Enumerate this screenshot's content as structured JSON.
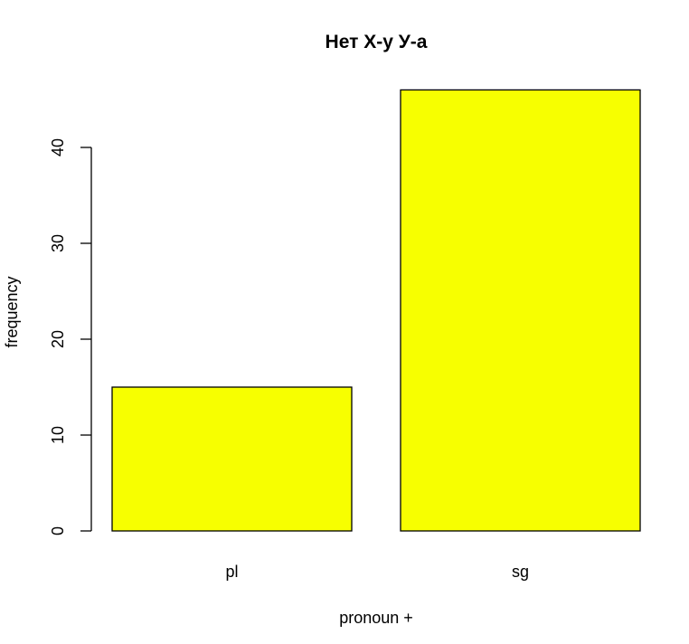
{
  "chart_data": {
    "type": "bar",
    "title": "Нет Х-у У-а",
    "xlabel": "pronoun +",
    "ylabel": "frequency",
    "categories": [
      "pl",
      "sg"
    ],
    "values": [
      15,
      46
    ],
    "ylim": [
      0,
      46
    ],
    "yticks": [
      0,
      10,
      20,
      30,
      40
    ],
    "ytick_labels": [
      "0",
      "10",
      "20",
      "30",
      "40"
    ],
    "bar_color": "#f7ff00",
    "grid": false,
    "legend": "none"
  }
}
